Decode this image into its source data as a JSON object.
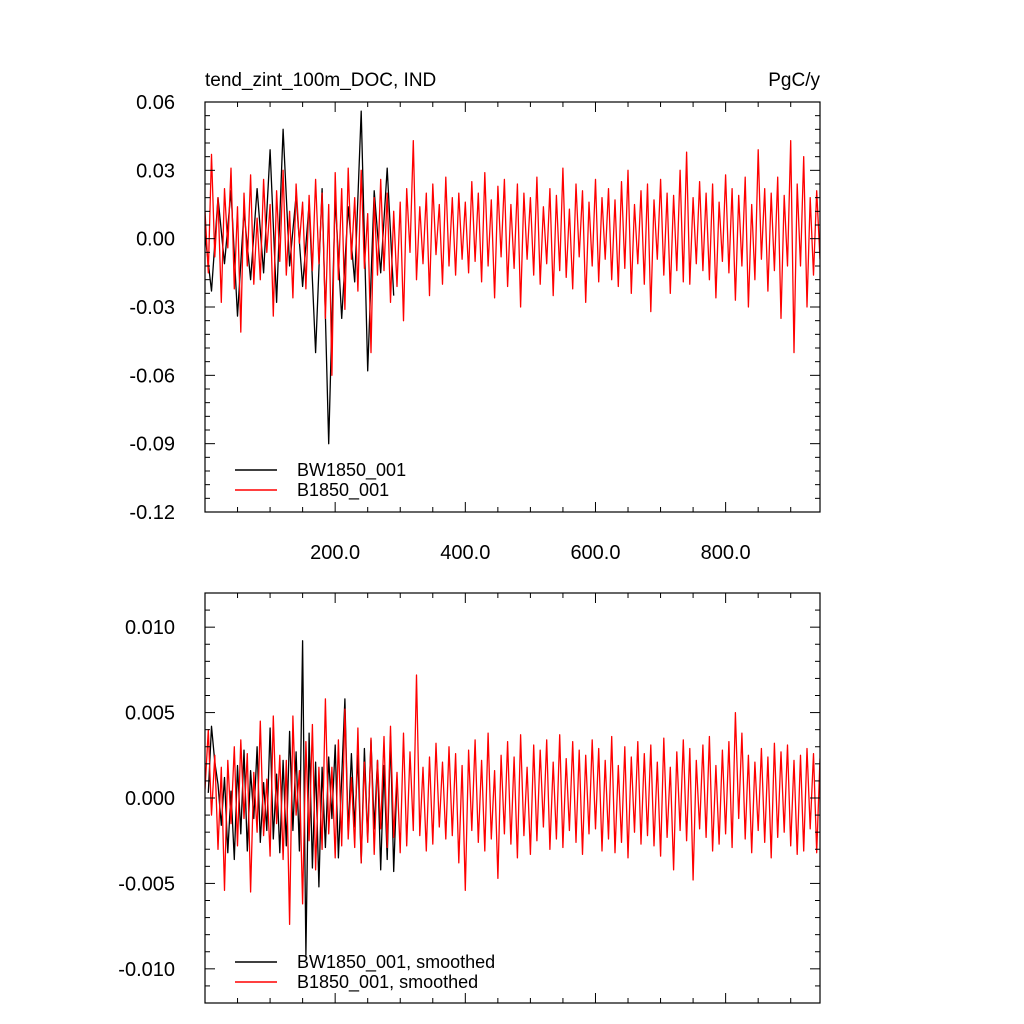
{
  "chart_data": [
    {
      "type": "line",
      "title": "tend_zint_100m_DOC, IND",
      "units": "PgC/y",
      "xlim": [
        0,
        945
      ],
      "ylim": [
        -0.12,
        0.06
      ],
      "xticks": [
        200,
        400,
        600,
        800
      ],
      "xtick_labels": [
        "200.0",
        "400.0",
        "600.0",
        "800.0"
      ],
      "yticks": [
        0.06,
        0.03,
        0.0,
        -0.03,
        -0.06,
        -0.09,
        -0.12
      ],
      "ytick_labels": [
        "0.06",
        "0.03",
        "0.00",
        "-0.03",
        "-0.06",
        "-0.09",
        "-0.12"
      ],
      "legend_position": "bottom-left",
      "series": [
        {
          "name": "BW1850_001",
          "color": "#000000",
          "x_start": 0,
          "x_step": 10,
          "values": [
            0.002,
            -0.023,
            0.018,
            -0.011,
            0.021,
            -0.034,
            0.012,
            -0.018,
            0.022,
            -0.015,
            0.039,
            -0.028,
            0.048,
            -0.012,
            0.019,
            -0.021,
            0.015,
            -0.05,
            0.022,
            -0.09,
            0.018,
            -0.035,
            0.014,
            -0.019,
            0.056,
            -0.058,
            0.021,
            -0.015,
            0.031,
            -0.025
          ]
        },
        {
          "name": "B1850_001",
          "color": "#ff0000",
          "x_start": 0,
          "x_step": 5,
          "values": [
            0.012,
            -0.015,
            0.037,
            -0.008,
            0.018,
            -0.028,
            0.022,
            -0.004,
            0.031,
            -0.022,
            0.014,
            -0.041,
            0.02,
            -0.012,
            0.028,
            -0.02,
            0.009,
            -0.018,
            0.026,
            -0.006,
            0.015,
            -0.034,
            0.021,
            -0.01,
            0.03,
            -0.016,
            0.012,
            -0.026,
            0.024,
            -0.002,
            0.016,
            -0.022,
            0.019,
            -0.014,
            0.026,
            -0.011,
            0.02,
            -0.035,
            0.015,
            -0.06,
            0.029,
            -0.018,
            0.022,
            -0.031,
            0.031,
            -0.009,
            0.018,
            -0.023,
            0.03,
            -0.013,
            0.011,
            -0.05,
            0.018,
            -0.016,
            0.026,
            -0.014,
            0.02,
            -0.028,
            0.012,
            -0.021,
            0.016,
            -0.036,
            0.022,
            -0.006,
            0.043,
            -0.018,
            0.014,
            -0.011,
            0.02,
            -0.025,
            0.024,
            -0.007,
            0.015,
            -0.02,
            0.027,
            -0.012,
            0.018,
            -0.016,
            0.02,
            -0.009,
            0.016,
            -0.015,
            0.025,
            -0.01,
            0.02,
            -0.019,
            0.029,
            -0.012,
            0.017,
            -0.026,
            0.023,
            -0.008,
            0.026,
            -0.021,
            0.015,
            -0.013,
            0.024,
            -0.03,
            0.02,
            -0.009,
            0.018,
            -0.016,
            0.027,
            -0.02,
            0.014,
            -0.011,
            0.022,
            -0.025,
            0.019,
            -0.014,
            0.031,
            -0.017,
            0.013,
            -0.022,
            0.024,
            -0.008,
            0.021,
            -0.028,
            0.016,
            -0.012,
            0.026,
            -0.019,
            0.018,
            -0.009,
            0.022,
            -0.018,
            0.017,
            -0.021,
            0.025,
            -0.013,
            0.03,
            -0.024,
            0.015,
            -0.011,
            0.021,
            -0.02,
            0.024,
            -0.032,
            0.017,
            -0.009,
            0.026,
            -0.016,
            0.02,
            -0.024,
            0.019,
            -0.014,
            0.03,
            -0.019,
            0.038,
            -0.02,
            0.018,
            -0.011,
            0.025,
            -0.014,
            0.02,
            -0.018,
            0.024,
            -0.026,
            0.016,
            -0.01,
            0.028,
            -0.015,
            0.022,
            -0.027,
            0.019,
            -0.012,
            0.027,
            -0.03,
            0.015,
            -0.018,
            0.039,
            -0.009,
            0.022,
            -0.023,
            0.02,
            -0.014,
            0.027,
            -0.035,
            0.019,
            -0.012,
            0.043,
            -0.05,
            0.024,
            -0.012,
            0.036,
            -0.03,
            0.018,
            -0.016,
            0.021,
            -0.009
          ]
        }
      ]
    },
    {
      "type": "line",
      "xlim": [
        0,
        945
      ],
      "ylim": [
        -0.012,
        0.012
      ],
      "xticks": [
        200,
        400,
        600,
        800
      ],
      "yticks": [
        0.01,
        0.005,
        0.0,
        -0.005,
        -0.01
      ],
      "ytick_labels": [
        "0.010",
        "0.005",
        "0.000",
        "-0.005",
        "-0.010"
      ],
      "legend_position": "bottom-left",
      "series": [
        {
          "name": "BW1850_001, smoothed",
          "color": "#000000",
          "x_start": 5,
          "x_step": 5,
          "values": [
            0.0003,
            0.0042,
            0.0021,
            0.0008,
            -0.0016,
            0.0012,
            -0.0032,
            0.0004,
            -0.0036,
            0.0019,
            -0.0021,
            0.0028,
            -0.0031,
            0.0016,
            -0.0012,
            0.003,
            -0.0026,
            0.0009,
            -0.0019,
            0.0041,
            -0.0024,
            0.0014,
            -0.0032,
            0.0022,
            -0.0028,
            0.0039,
            -0.0019,
            0.0027,
            -0.0031,
            0.0092,
            -0.0092,
            0.0038,
            -0.0041,
            0.0021,
            -0.0052,
            0.0018,
            -0.0029,
            0.0024,
            -0.0012,
            0.0031,
            -0.0035,
            0.0012,
            0.0058,
            -0.0021,
            0.0026,
            -0.0017,
            0.0025,
            -0.0038,
            0.0029,
            -0.0024,
            0.0034,
            -0.0018,
            0.0022,
            -0.0042,
            0.0019,
            -0.0036,
            0.0036,
            -0.0043,
            0.0011
          ]
        },
        {
          "name": "B1850_001, smoothed",
          "color": "#ff0000",
          "x_start": 0,
          "x_step": 5,
          "values": [
            0.0005,
            0.004,
            -0.001,
            0.0025,
            -0.003,
            0.0018,
            -0.0054,
            0.0022,
            -0.0015,
            0.003,
            -0.0028,
            0.0034,
            -0.0012,
            0.0026,
            -0.0055,
            0.0015,
            -0.002,
            0.0045,
            -0.0022,
            0.0011,
            -0.0034,
            0.0048,
            -0.0015,
            0.0025,
            -0.0036,
            0.0022,
            -0.0074,
            0.0048,
            -0.001,
            0.0016,
            -0.0062,
            0.0033,
            -0.0025,
            0.0043,
            -0.0042,
            0.0018,
            -0.003,
            0.0058,
            -0.0021,
            0.0018,
            -0.0035,
            0.0034,
            -0.0028,
            0.0052,
            -0.0024,
            0.0012,
            -0.0029,
            0.0041,
            -0.0038,
            0.0021,
            -0.0026,
            0.0035,
            -0.0033,
            0.0022,
            -0.0018,
            0.0036,
            -0.0029,
            0.0042,
            -0.0023,
            0.0015,
            -0.0032,
            0.0038,
            -0.0028,
            0.0027,
            -0.0019,
            0.0072,
            -0.0022,
            0.0018,
            -0.0031,
            0.0024,
            -0.0027,
            0.0032,
            -0.0017,
            0.0021,
            -0.0024,
            0.003,
            -0.0022,
            0.0026,
            -0.0038,
            0.0019,
            -0.0054,
            0.0028,
            -0.0019,
            0.0034,
            -0.0026,
            0.0022,
            -0.0031,
            0.0038,
            -0.0024,
            0.0016,
            -0.0047,
            0.0025,
            -0.0021,
            0.0033,
            -0.0027,
            0.0024,
            -0.0035,
            0.0037,
            -0.0022,
            0.0018,
            -0.0033,
            0.0031,
            -0.0025,
            0.0028,
            -0.0017,
            0.0034,
            -0.003,
            0.0021,
            -0.0024,
            0.0037,
            -0.0029,
            0.0023,
            -0.0019,
            0.0033,
            -0.0026,
            0.0028,
            -0.0033,
            0.0025,
            -0.0021,
            0.0034,
            -0.0018,
            0.0029,
            -0.0031,
            0.0022,
            -0.0024,
            0.0036,
            -0.0032,
            0.0019,
            -0.0026,
            0.003,
            -0.0035,
            0.0024,
            -0.002,
            0.0033,
            -0.0027,
            0.0026,
            -0.0022,
            0.0031,
            -0.0028,
            0.0021,
            -0.0034,
            0.0035,
            -0.0023,
            0.0018,
            -0.0042,
            0.0027,
            -0.0019,
            0.0034,
            -0.0025,
            0.0029,
            -0.0048,
            0.0022,
            -0.0018,
            0.0031,
            -0.0023,
            0.0036,
            -0.0031,
            0.0019,
            -0.0027,
            0.0028,
            -0.0021,
            0.0033,
            -0.0029,
            0.005,
            -0.0012,
            0.0038,
            -0.0024,
            0.0025,
            -0.0032,
            0.0021,
            -0.0019,
            0.0029,
            -0.0026,
            0.0024,
            -0.0035,
            0.0032,
            -0.0023,
            0.0027,
            -0.002,
            0.0031,
            -0.0028,
            0.0022,
            -0.0033,
            0.0025,
            -0.0031,
            0.0029,
            -0.0018,
            0.0026,
            -0.0032,
            0.0023,
            -0.0015
          ]
        }
      ]
    }
  ]
}
